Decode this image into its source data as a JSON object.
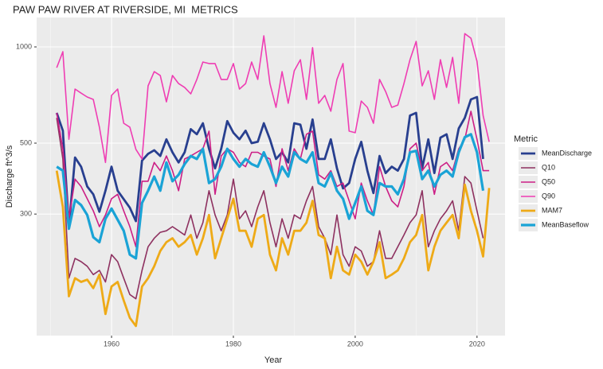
{
  "chart_data": {
    "type": "line",
    "title": "PAW PAW RIVER AT RIVERSIDE, MI  METRICS",
    "x_label": "Year",
    "y_label": "Discharge ft^3/s",
    "legend_title": "Metric",
    "log_y": true,
    "grid": true,
    "legend": "right",
    "xlim": [
      1947.7,
      2024.6
    ],
    "xticks": [
      1960,
      1980,
      2000,
      2020
    ],
    "xminor": [
      1950,
      1970,
      1990,
      2010
    ],
    "ylim": [
      125,
      1236
    ],
    "yticks": [
      300,
      500,
      1000
    ],
    "x": [
      1951,
      1952,
      1953,
      1954,
      1955,
      1956,
      1957,
      1958,
      1959,
      1960,
      1961,
      1962,
      1963,
      1964,
      1965,
      1966,
      1967,
      1968,
      1969,
      1970,
      1971,
      1972,
      1973,
      1974,
      1975,
      1976,
      1977,
      1978,
      1979,
      1980,
      1981,
      1982,
      1983,
      1984,
      1985,
      1986,
      1987,
      1988,
      1989,
      1990,
      1991,
      1992,
      1993,
      1994,
      1995,
      1996,
      1997,
      1998,
      1999,
      2000,
      2001,
      2002,
      2003,
      2004,
      2005,
      2006,
      2007,
      2008,
      2009,
      2010,
      2011,
      2012,
      2013,
      2014,
      2015,
      2016,
      2017,
      2018,
      2019,
      2020,
      2021,
      2022
    ],
    "series": [
      {
        "name": "MeanDischarge",
        "color": "#283f8f",
        "width": 2.8,
        "values": [
          622,
          547,
          274,
          451,
          422,
          366,
          346,
          305,
          355,
          422,
          355,
          334,
          314,
          285,
          441,
          463,
          475,
          456,
          514,
          468,
          435,
          468,
          553,
          533,
          577,
          480,
          417,
          480,
          586,
          539,
          514,
          547,
          500,
          505,
          577,
          514,
          446,
          468,
          435,
          577,
          571,
          480,
          593,
          446,
          446,
          514,
          417,
          361,
          375,
          446,
          505,
          410,
          349,
          456,
          403,
          422,
          410,
          446,
          610,
          622,
          417,
          514,
          403,
          520,
          533,
          446,
          556,
          600,
          685,
          697,
          446,
          null
        ]
      },
      {
        "name": "Q10",
        "color": "#8e3160",
        "width": 1.6,
        "values": [
          600,
          446,
          189,
          218,
          213,
          206,
          194,
          200,
          184,
          224,
          213,
          189,
          168,
          163,
          200,
          237,
          252,
          263,
          266,
          274,
          266,
          258,
          298,
          252,
          282,
          355,
          298,
          266,
          298,
          386,
          290,
          307,
          274,
          316,
          355,
          282,
          237,
          290,
          252,
          298,
          290,
          330,
          366,
          274,
          252,
          224,
          298,
          224,
          206,
          237,
          230,
          206,
          213,
          266,
          218,
          218,
          237,
          258,
          282,
          298,
          355,
          237,
          266,
          290,
          307,
          330,
          266,
          393,
          375,
          307,
          252,
          null
        ]
      },
      {
        "name": "Q50",
        "color": "#cc1f86",
        "width": 1.6,
        "values": [
          622,
          480,
          290,
          386,
          366,
          335,
          307,
          274,
          298,
          335,
          346,
          307,
          274,
          237,
          380,
          380,
          435,
          410,
          456,
          410,
          355,
          446,
          456,
          468,
          480,
          545,
          346,
          456,
          480,
          468,
          435,
          422,
          468,
          468,
          456,
          446,
          366,
          480,
          410,
          480,
          446,
          533,
          545,
          398,
          386,
          410,
          366,
          375,
          330,
          290,
          375,
          330,
          298,
          422,
          366,
          330,
          316,
          366,
          480,
          500,
          410,
          435,
          346,
          422,
          435,
          410,
          480,
          514,
          629,
          514,
          410,
          410
        ]
      },
      {
        "name": "Q90",
        "color": "#ef3db3",
        "width": 1.6,
        "values": [
          861,
          966,
          514,
          738,
          717,
          697,
          685,
          561,
          435,
          705,
          738,
          577,
          561,
          478,
          446,
          755,
          837,
          814,
          673,
          814,
          768,
          747,
          713,
          791,
          897,
          887,
          887,
          791,
          791,
          887,
          738,
          768,
          897,
          791,
          1083,
          768,
          647,
          837,
          666,
          842,
          912,
          685,
          995,
          666,
          705,
          629,
          791,
          887,
          545,
          539,
          677,
          647,
          577,
          791,
          725,
          647,
          658,
          768,
          912,
          1040,
          755,
          842,
          685,
          912,
          747,
          927,
          666,
          1100,
          1065,
          902,
          610,
          505
        ]
      },
      {
        "name": "MAM7",
        "color": "#eeaa17",
        "width": 2.8,
        "values": [
          410,
          316,
          166,
          189,
          184,
          187,
          176,
          194,
          146,
          178,
          184,
          161,
          142,
          134,
          178,
          189,
          206,
          230,
          245,
          252,
          237,
          245,
          258,
          224,
          252,
          298,
          218,
          252,
          290,
          335,
          266,
          266,
          237,
          290,
          298,
          224,
          200,
          252,
          224,
          266,
          266,
          282,
          330,
          258,
          252,
          189,
          237,
          200,
          194,
          224,
          213,
          194,
          213,
          245,
          189,
          194,
          200,
          218,
          245,
          258,
          298,
          200,
          237,
          266,
          282,
          298,
          252,
          371,
          307,
          266,
          221,
          362
        ]
      },
      {
        "name": "MeanBaseflow",
        "color": "#1aa3d6",
        "width": 3.2,
        "values": [
          422,
          410,
          270,
          332,
          320,
          298,
          254,
          245,
          290,
          312,
          288,
          266,
          224,
          218,
          325,
          355,
          393,
          355,
          435,
          380,
          398,
          430,
          456,
          446,
          480,
          375,
          386,
          422,
          480,
          446,
          422,
          446,
          430,
          422,
          468,
          422,
          375,
          422,
          393,
          468,
          446,
          435,
          468,
          375,
          366,
          403,
          355,
          335,
          290,
          325,
          366,
          307,
          298,
          375,
          366,
          366,
          346,
          386,
          468,
          473,
          386,
          410,
          366,
          398,
          410,
          393,
          468,
          522,
          533,
          468,
          355,
          null
        ]
      }
    ]
  }
}
